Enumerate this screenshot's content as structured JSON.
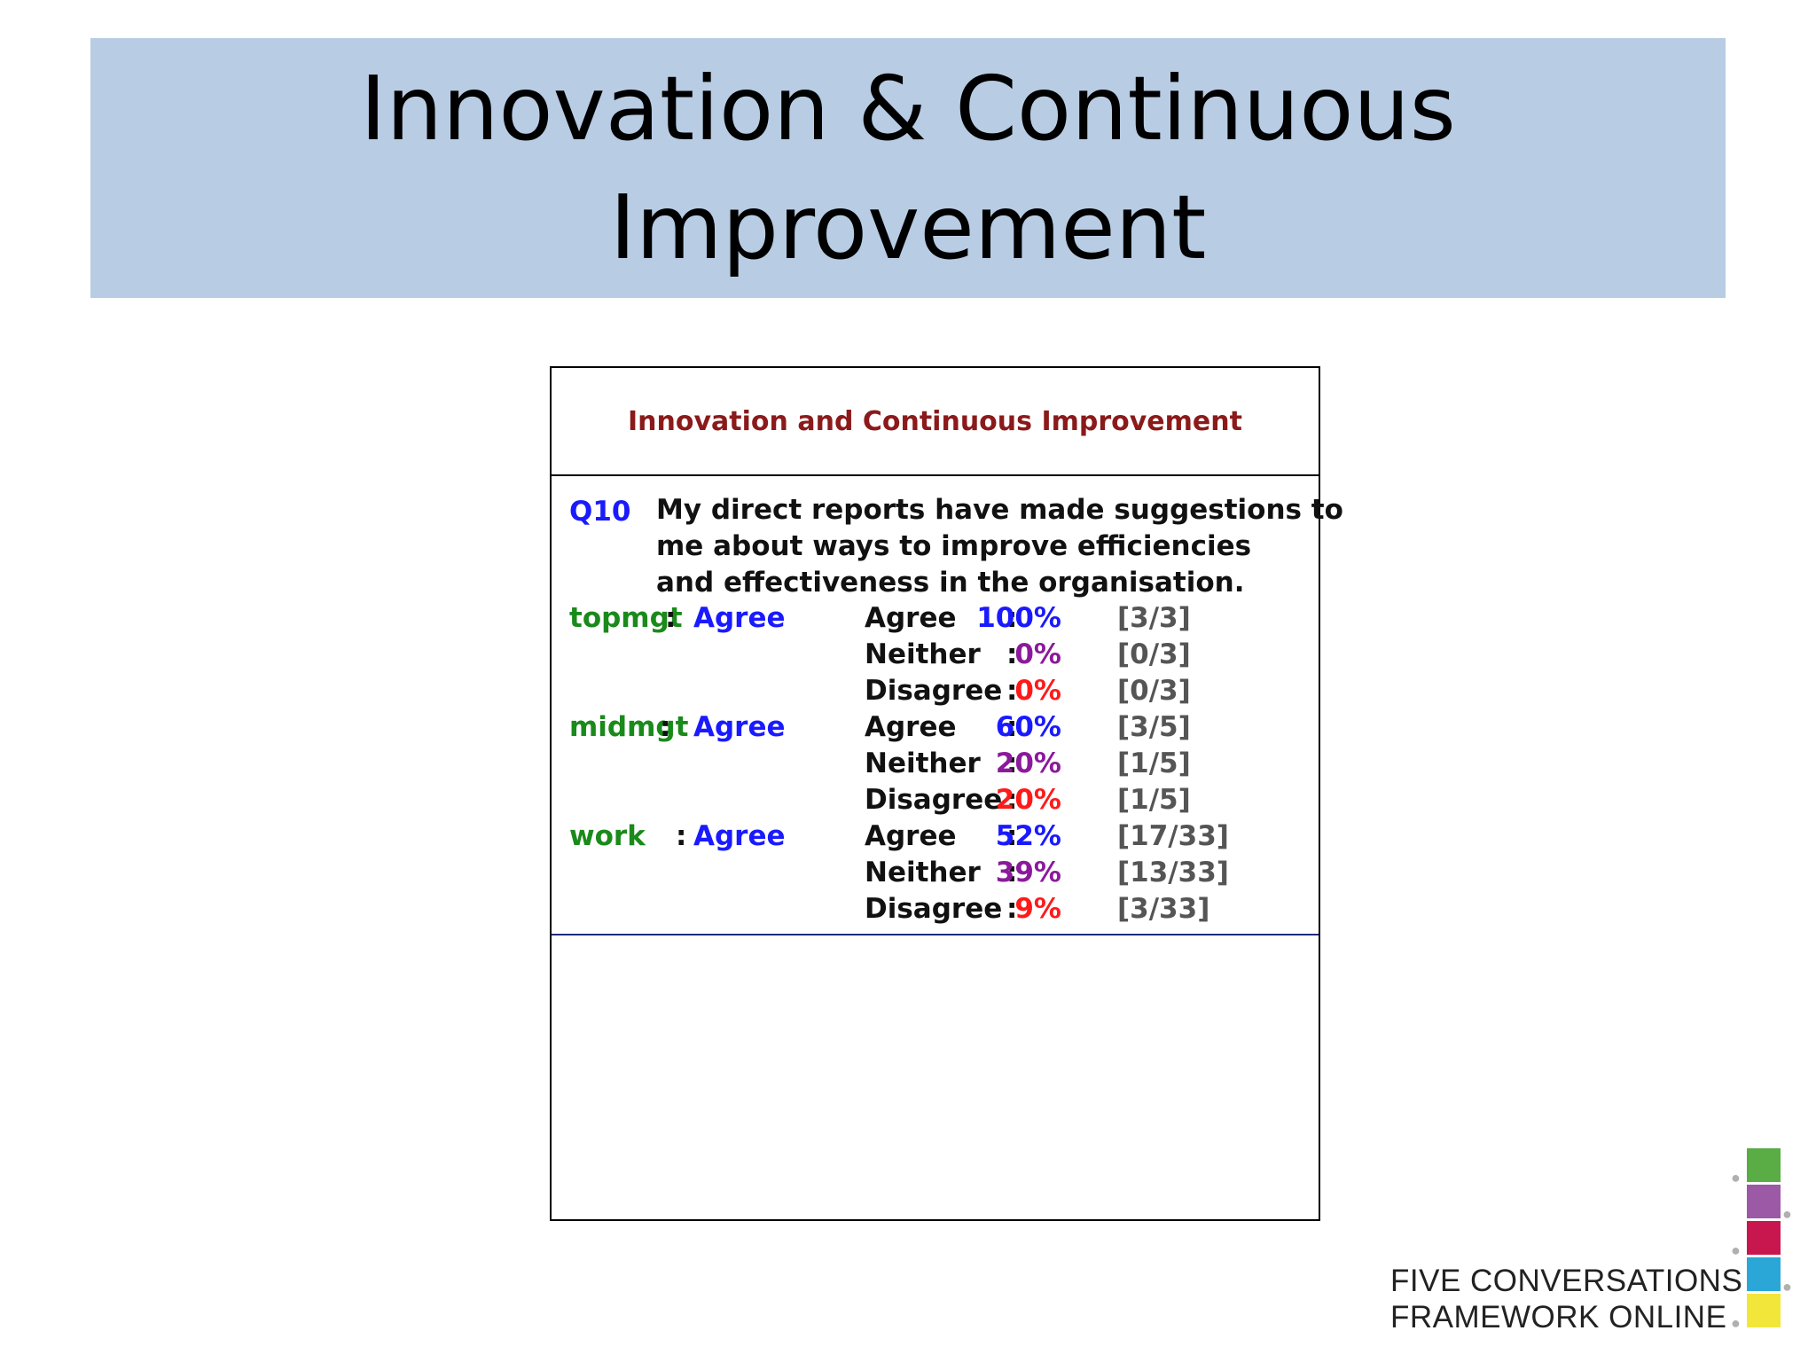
{
  "slide": {
    "title_line1": "Innovation & Continuous",
    "title_line2": "Improvement"
  },
  "panel": {
    "title": "Innovation and Continuous Improvement",
    "question": {
      "id": "Q10",
      "text_lines": [
        "My direct reports have made suggestions to",
        "me about ways to    improve efficiencies",
        "and effectiveness in the organisation."
      ]
    },
    "groups": [
      {
        "name": "topmgt",
        "sep": " : ",
        "overall": "Agree",
        "rows": [
          {
            "label": "Agree",
            "colon": ":",
            "pct": "100%",
            "count": "[3/3]",
            "kind": "agree"
          },
          {
            "label": "Neither",
            "colon": ":",
            "pct": "0%",
            "count": "[0/3]",
            "kind": "neither"
          },
          {
            "label": "Disagree",
            "colon": ":",
            "pct": "0%",
            "count": "[0/3]",
            "kind": "disagree"
          }
        ]
      },
      {
        "name": "midmgt",
        "sep": ": ",
        "overall": "Agree",
        "rows": [
          {
            "label": "Agree",
            "colon": ":",
            "pct": "60%",
            "count": "[3/5]",
            "kind": "agree"
          },
          {
            "label": "Neither",
            "colon": ":",
            "pct": "20%",
            "count": "[1/5]",
            "kind": "neither"
          },
          {
            "label": "Disagree",
            "colon": ":",
            "pct": "20%",
            "count": "[1/5]",
            "kind": "disagree"
          }
        ]
      },
      {
        "name": "work",
        "sep": ":",
        "overall": "Agree",
        "rows": [
          {
            "label": "Agree",
            "colon": ":",
            "pct": "52%",
            "count": "[17/33]",
            "kind": "agree"
          },
          {
            "label": "Neither",
            "colon": ":",
            "pct": "39%",
            "count": "[13/33]",
            "kind": "neither"
          },
          {
            "label": "Disagree",
            "colon": ":",
            "pct": "9%",
            "count": "[3/33]",
            "kind": "disagree"
          }
        ]
      }
    ]
  },
  "logo": {
    "line1": "FIVE CONVERSATIONS",
    "line2": "FRAMEWORK ONLINE",
    "colors": [
      "#5aac44",
      "#9b59a6",
      "#c8174e",
      "#2aa7d6",
      "#f3e63a"
    ]
  }
}
